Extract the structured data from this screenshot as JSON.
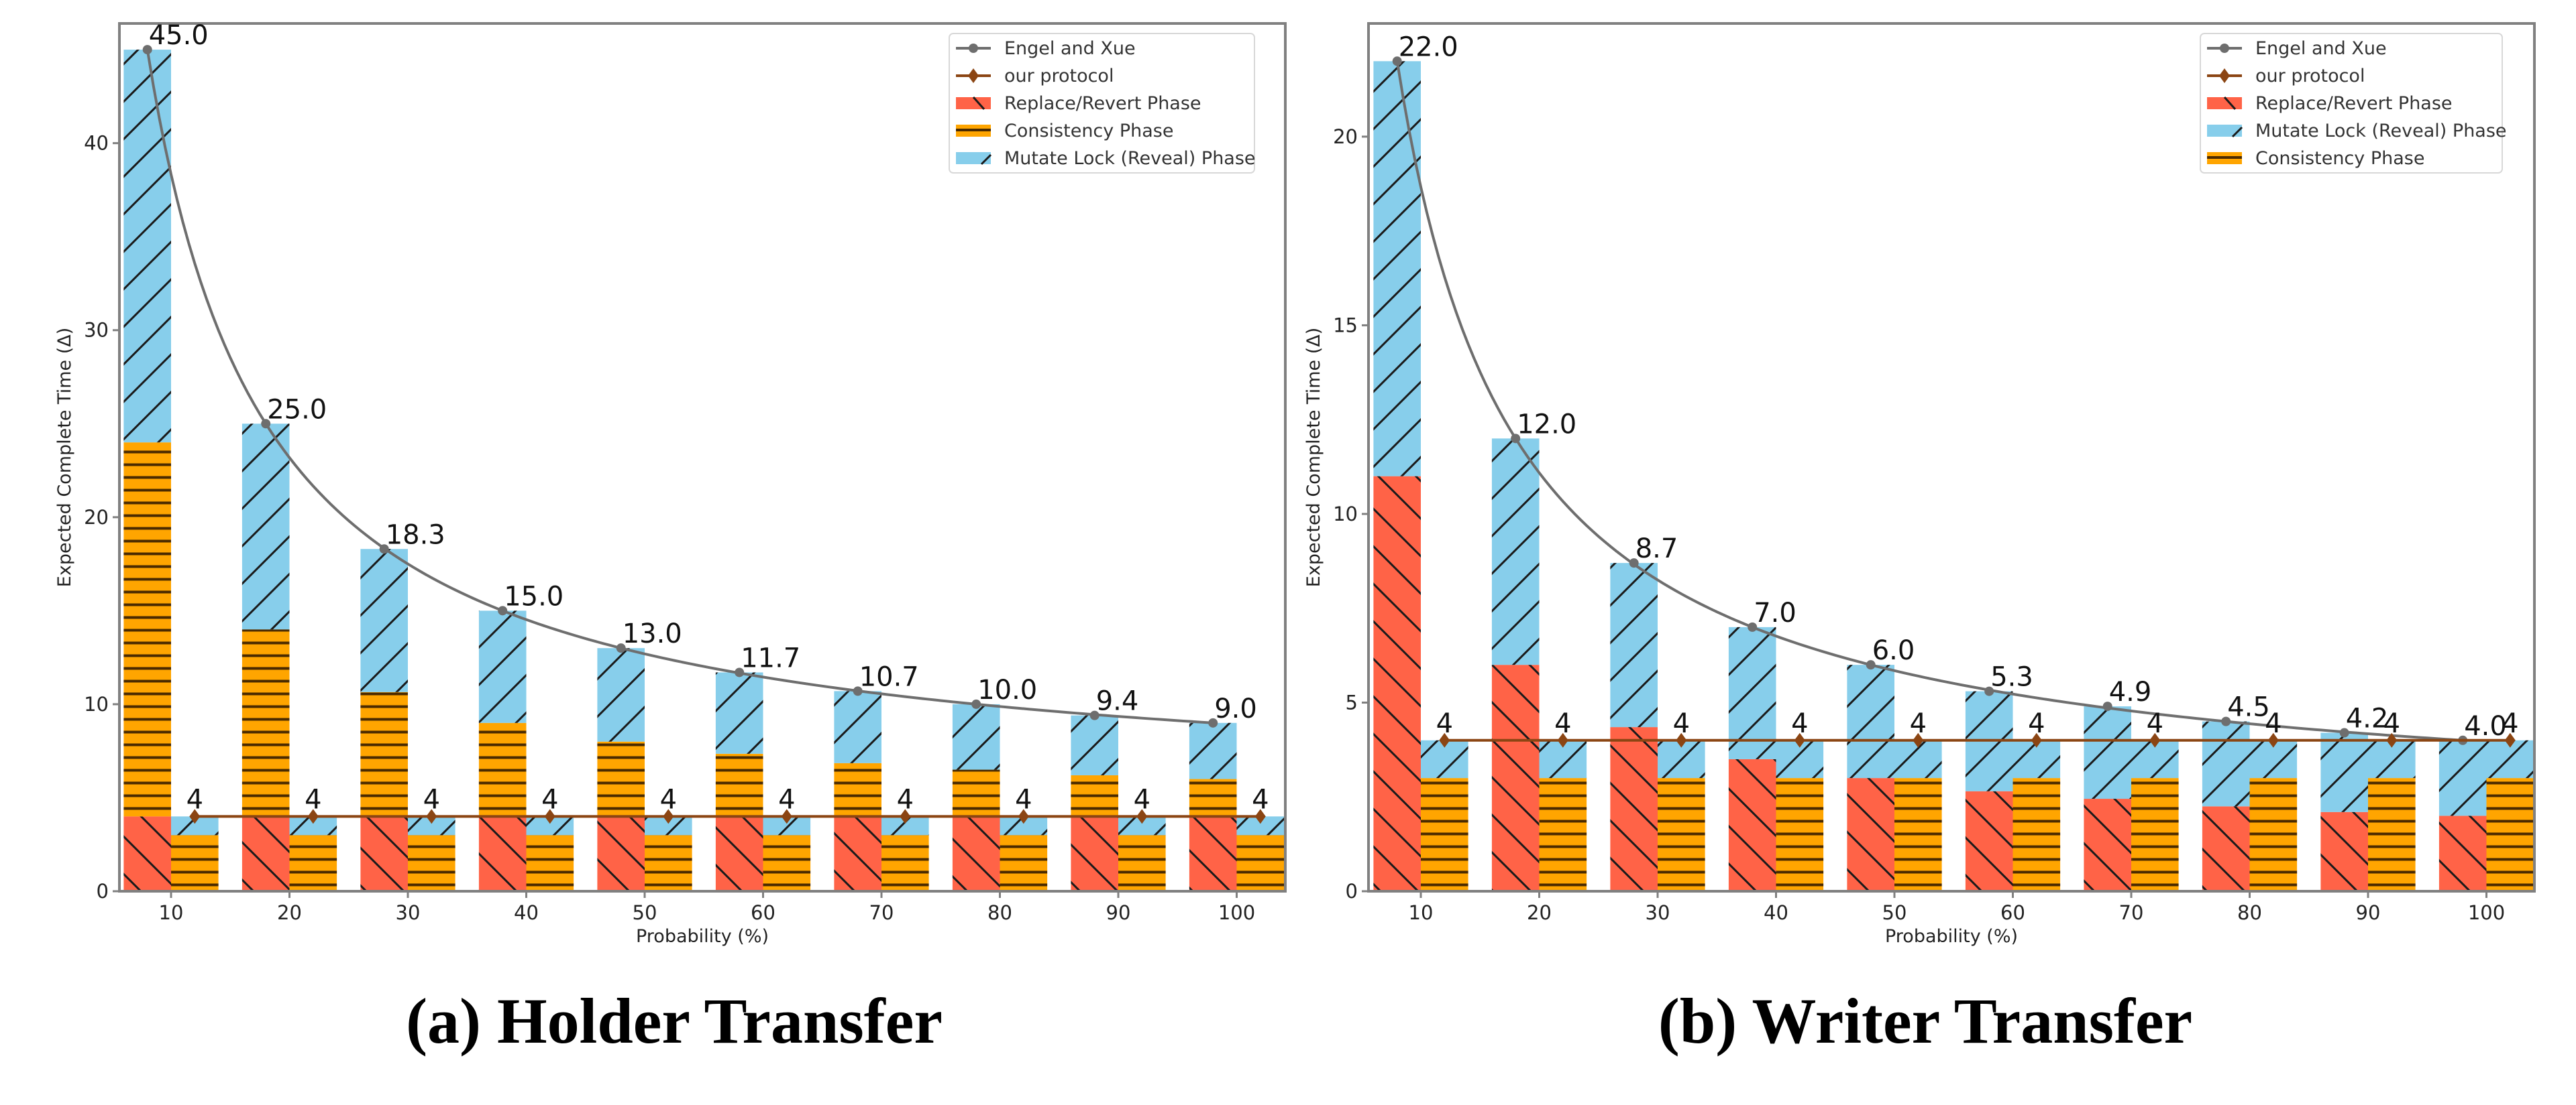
{
  "colors": {
    "replace_revert": "#ff6347",
    "consistency": "#ffa500",
    "mutate_lock": "#87ceeb",
    "engel_line": "#6e6e6e",
    "our_line": "#8b4513",
    "hatch": "#1a1a1a",
    "axis": "#808080",
    "text": "#222222"
  },
  "captions": {
    "a": "(a) Holder Transfer",
    "b": "(b) Writer Transfer"
  },
  "chart_data": [
    {
      "id": "holder",
      "type": "bar",
      "title": "(a) Holder Transfer",
      "xlabel": "Probability (%)",
      "ylabel": "Expected Complete Time (Δ)",
      "categories": [
        10,
        20,
        30,
        40,
        50,
        60,
        70,
        80,
        90,
        100
      ],
      "xticks": [
        "10",
        "20",
        "30",
        "40",
        "50",
        "60",
        "70",
        "80",
        "90",
        "100"
      ],
      "yticks": [
        0,
        10,
        20,
        30,
        40
      ],
      "ylim": [
        0,
        46.4
      ],
      "grid": false,
      "legend_position": "upper right",
      "legend": [
        {
          "key": "engel",
          "label": "Engel and Xue",
          "kind": "line-circle"
        },
        {
          "key": "ours",
          "label": "our protocol",
          "kind": "line-diamond"
        },
        {
          "key": "replace_revert",
          "label": "Replace/Revert Phase",
          "kind": "patch-backslash"
        },
        {
          "key": "consistency",
          "label": "Consistency Phase",
          "kind": "patch-horizontal"
        },
        {
          "key": "mutate_lock",
          "label": "Mutate Lock (Reveal) Phase",
          "kind": "patch-slash"
        }
      ],
      "lines": [
        {
          "name": "Engel and Xue",
          "values": [
            45.0,
            25.0,
            18.3,
            15.0,
            13.0,
            11.7,
            10.7,
            10.0,
            9.4,
            9.0
          ],
          "labels": [
            "45.0",
            "25.0",
            "18.3",
            "15.0",
            "13.0",
            "11.7",
            "10.7",
            "10.0",
            "9.4",
            "9.0"
          ]
        },
        {
          "name": "our protocol",
          "values": [
            4,
            4,
            4,
            4,
            4,
            4,
            4,
            4,
            4,
            4
          ],
          "labels": [
            "4",
            "4",
            "4",
            "4",
            "4",
            "4",
            "4",
            "4",
            "4",
            "4"
          ]
        }
      ],
      "stacked_bars": [
        {
          "group": "Engel and Xue",
          "series": [
            {
              "name": "Replace/Revert Phase",
              "phase": "replace_revert",
              "values": [
                4,
                4,
                4,
                4,
                4,
                4,
                4,
                4,
                4,
                4
              ]
            },
            {
              "name": "Consistency Phase",
              "phase": "consistency",
              "values": [
                20.0,
                10.0,
                6.65,
                5.0,
                4.0,
                3.35,
                2.85,
                2.5,
                2.2,
                2.0
              ]
            },
            {
              "name": "Mutate Lock (Reveal) Phase",
              "phase": "mutate_lock",
              "values": [
                21.0,
                11.0,
                7.65,
                6.0,
                5.0,
                4.35,
                3.85,
                3.5,
                3.2,
                3.0
              ]
            }
          ]
        },
        {
          "group": "our protocol",
          "series": [
            {
              "name": "Consistency Phase",
              "phase": "consistency",
              "values": [
                3,
                3,
                3,
                3,
                3,
                3,
                3,
                3,
                3,
                3
              ]
            },
            {
              "name": "Mutate Lock (Reveal) Phase",
              "phase": "mutate_lock",
              "values": [
                1,
                1,
                1,
                1,
                1,
                1,
                1,
                1,
                1,
                1
              ]
            }
          ]
        }
      ]
    },
    {
      "id": "writer",
      "type": "bar",
      "title": "(b) Writer Transfer",
      "xlabel": "Probability (%)",
      "ylabel": "Expected Complete Time (Δ)",
      "categories": [
        10,
        20,
        30,
        40,
        50,
        60,
        70,
        80,
        90,
        100
      ],
      "xticks": [
        "10",
        "20",
        "30",
        "40",
        "50",
        "60",
        "70",
        "80",
        "90",
        "100"
      ],
      "yticks": [
        0,
        5,
        10,
        15,
        20
      ],
      "ylim": [
        0,
        23.0
      ],
      "grid": false,
      "legend_position": "upper right",
      "legend": [
        {
          "key": "engel",
          "label": "Engel and Xue",
          "kind": "line-circle"
        },
        {
          "key": "ours",
          "label": "our protocol",
          "kind": "line-diamond"
        },
        {
          "key": "replace_revert",
          "label": "Replace/Revert Phase",
          "kind": "patch-backslash"
        },
        {
          "key": "mutate_lock",
          "label": "Mutate Lock (Reveal) Phase",
          "kind": "patch-slash"
        },
        {
          "key": "consistency",
          "label": "Consistency Phase",
          "kind": "patch-horizontal"
        }
      ],
      "lines": [
        {
          "name": "Engel and Xue",
          "values": [
            22.0,
            12.0,
            8.7,
            7.0,
            6.0,
            5.3,
            4.9,
            4.5,
            4.2,
            4.0
          ],
          "labels": [
            "22.0",
            "12.0",
            "8.7",
            "7.0",
            "6.0",
            "5.3",
            "4.9",
            "4.5",
            "4.2",
            "4.0"
          ]
        },
        {
          "name": "our protocol",
          "values": [
            4,
            4,
            4,
            4,
            4,
            4,
            4,
            4,
            4,
            4
          ],
          "labels": [
            "4",
            "4",
            "4",
            "4",
            "4",
            "4",
            "4",
            "4",
            "4",
            "4"
          ]
        }
      ],
      "stacked_bars": [
        {
          "group": "Engel and Xue",
          "series": [
            {
              "name": "Replace/Revert Phase",
              "phase": "replace_revert",
              "values": [
                11.0,
                6.0,
                4.35,
                3.5,
                3.0,
                2.65,
                2.45,
                2.25,
                2.1,
                2.0
              ]
            },
            {
              "name": "Mutate Lock (Reveal) Phase",
              "phase": "mutate_lock",
              "values": [
                11.0,
                6.0,
                4.35,
                3.5,
                3.0,
                2.65,
                2.45,
                2.25,
                2.1,
                2.0
              ]
            }
          ]
        },
        {
          "group": "our protocol",
          "series": [
            {
              "name": "Consistency Phase",
              "phase": "consistency",
              "values": [
                3,
                3,
                3,
                3,
                3,
                3,
                3,
                3,
                3,
                3
              ]
            },
            {
              "name": "Mutate Lock (Reveal) Phase",
              "phase": "mutate_lock",
              "values": [
                1,
                1,
                1,
                1,
                1,
                1,
                1,
                1,
                1,
                1
              ]
            }
          ]
        }
      ]
    }
  ]
}
